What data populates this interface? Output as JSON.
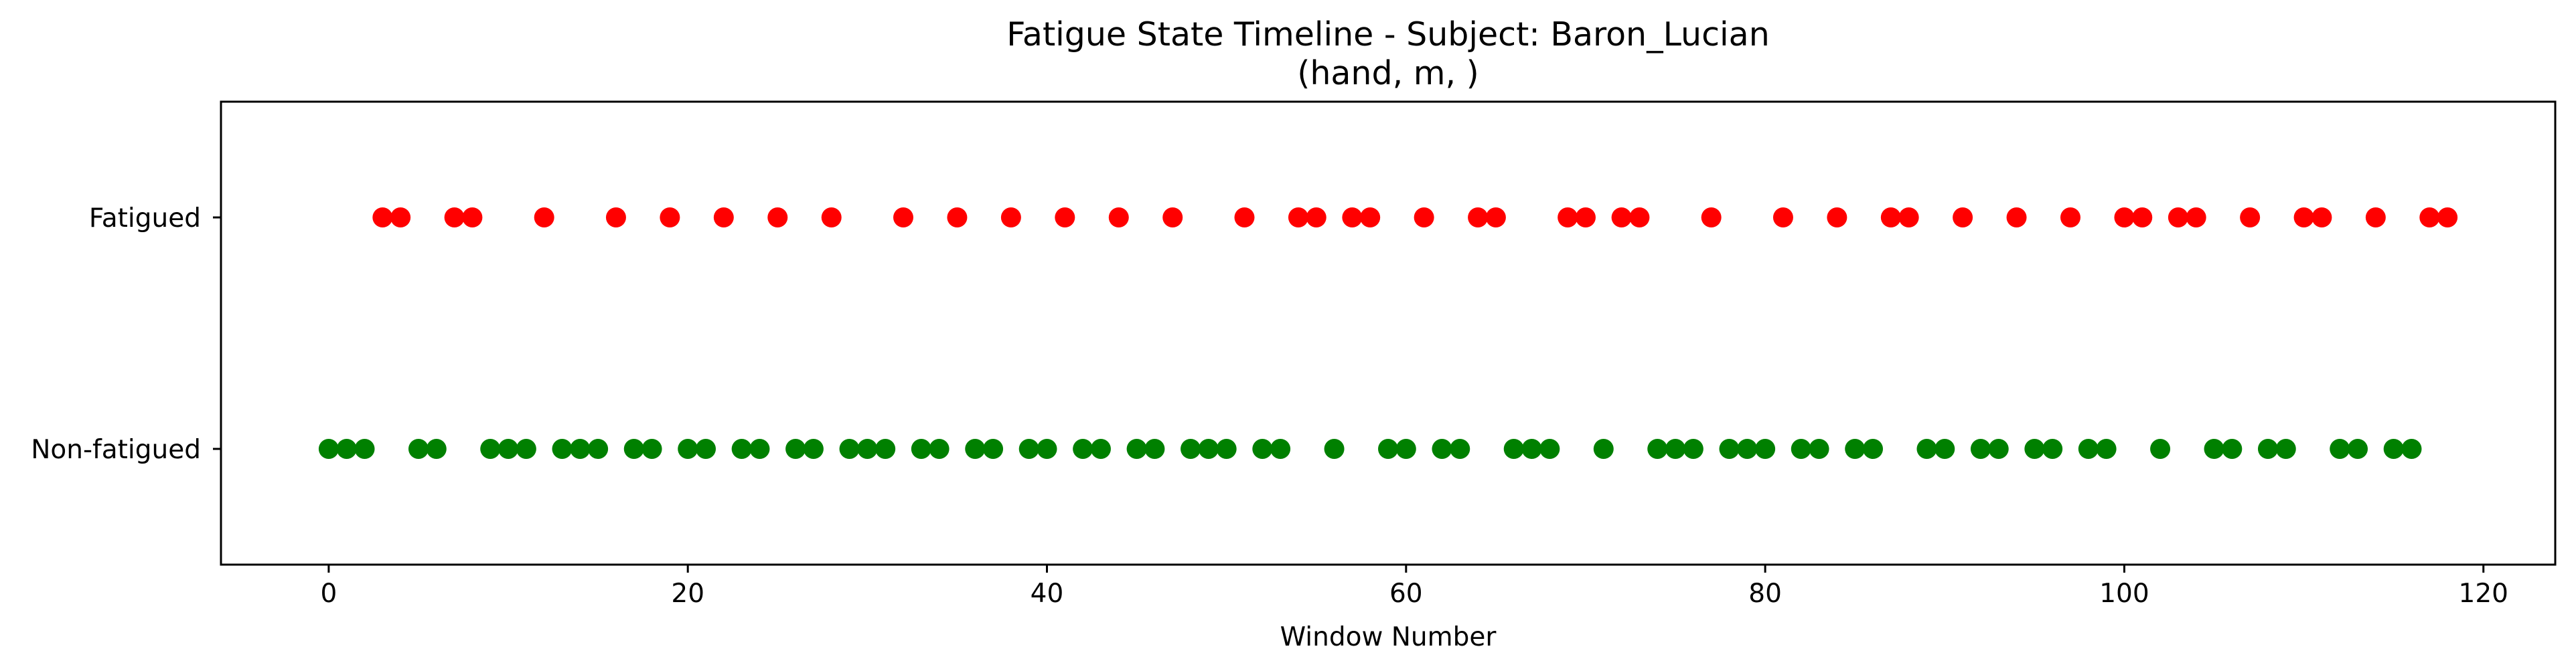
{
  "chart_data": {
    "type": "scatter",
    "title": "Fatigue State Timeline - Subject: Baron_Lucian",
    "subtitle": "(hand, m, )",
    "xlabel": "Window Number",
    "ylabel": "",
    "xlim": [
      -6,
      124
    ],
    "xticks": [
      0,
      20,
      40,
      60,
      80,
      100,
      120
    ],
    "ylim": [
      -0.5,
      1.5
    ],
    "yticks": [
      0,
      1
    ],
    "ytick_labels": [
      "Non-fatigued",
      "Fatigued"
    ],
    "grid": false,
    "series": [
      {
        "y": 1,
        "color": "#ff0000",
        "x": [
          3,
          4,
          7,
          8,
          12,
          16,
          19,
          22,
          25,
          28,
          32,
          35,
          38,
          41,
          44,
          47,
          51,
          54,
          55,
          57,
          58,
          61,
          64,
          65,
          69,
          70,
          72,
          73,
          77,
          81,
          84,
          87,
          88,
          91,
          94,
          97,
          100,
          101,
          103,
          104,
          107,
          110,
          111,
          114,
          117,
          118
        ]
      },
      {
        "y": 0,
        "color": "#008000",
        "x": [
          0,
          1,
          2,
          5,
          6,
          9,
          10,
          11,
          13,
          14,
          15,
          17,
          18,
          20,
          21,
          23,
          24,
          26,
          27,
          29,
          30,
          31,
          33,
          34,
          36,
          37,
          39,
          40,
          42,
          43,
          45,
          46,
          48,
          49,
          50,
          52,
          53,
          56,
          59,
          60,
          62,
          63,
          66,
          67,
          68,
          71,
          74,
          75,
          76,
          78,
          79,
          80,
          82,
          83,
          85,
          86,
          89,
          90,
          92,
          93,
          95,
          96,
          98,
          99,
          102,
          105,
          106,
          108,
          109,
          112,
          113,
          115,
          116
        ]
      }
    ]
  }
}
